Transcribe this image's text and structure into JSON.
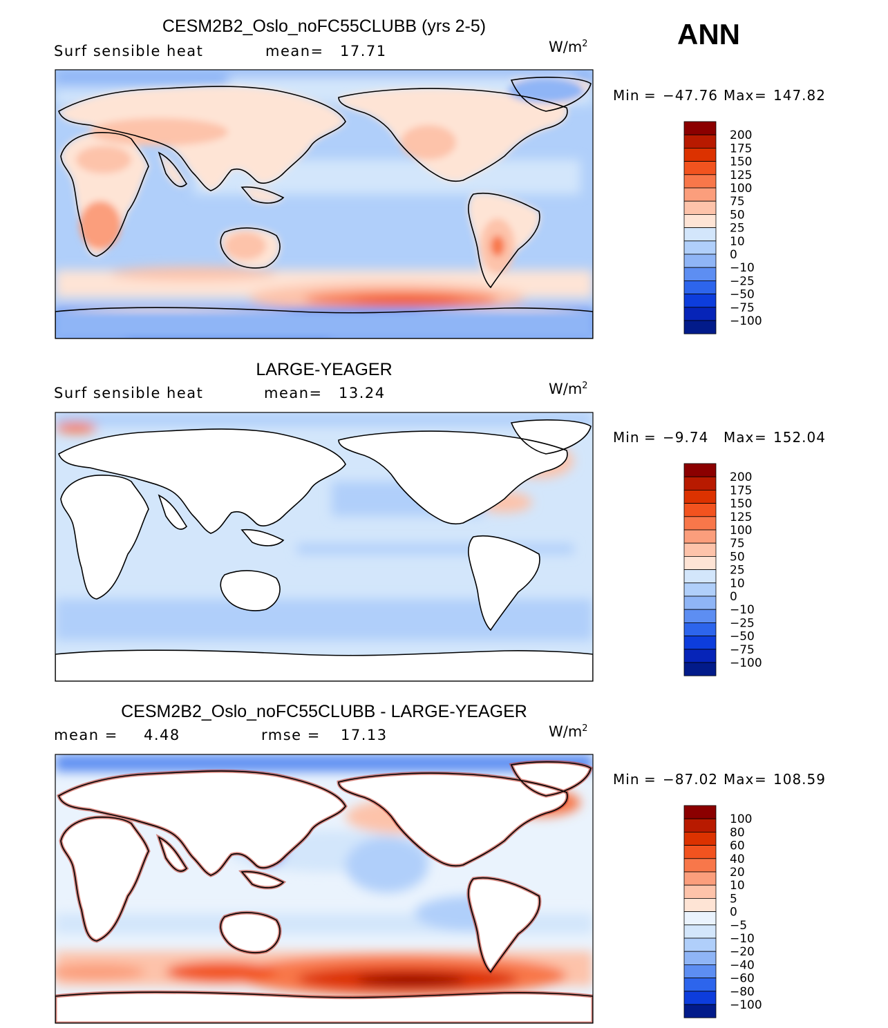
{
  "season": "ANN",
  "units_label": "W/m",
  "units_exp": "2",
  "panels": [
    {
      "title": "CESM2B2_Oslo_noFC55CLUBB (yrs 2-5)",
      "sub_left": "Surf sensible heat",
      "sub_mid_label": "mean=",
      "sub_mid_value": "17.71",
      "sub_right_label": "",
      "sub_right_value": "",
      "min_label": "Min",
      "eq": "=",
      "min_value": "−47.76",
      "max_label": "Max",
      "max_value": "147.82"
    },
    {
      "title": "LARGE-YEAGER",
      "sub_left": "Surf sensible heat",
      "sub_mid_label": "mean=",
      "sub_mid_value": "13.24",
      "sub_right_label": "",
      "sub_right_value": "",
      "min_label": "Min",
      "eq": "=",
      "min_value": "−9.74",
      "max_label": "Max",
      "max_value": "152.04"
    },
    {
      "title": "CESM2B2_Oslo_noFC55CLUBB - LARGE-YEAGER",
      "sub_left": "mean =",
      "sub_mid_label": "4.48",
      "sub_mid_value": "",
      "sub_right_label": "rmse =",
      "sub_right_value": "17.13",
      "min_label": "Min",
      "eq": "=",
      "min_value": "−87.02",
      "max_label": "Max",
      "max_value": "108.59"
    }
  ],
  "chart_data": [
    {
      "type": "heatmap",
      "title": "CESM2B2_Oslo_noFC55CLUBB (yrs 2-5)",
      "variable": "Surf sensible heat",
      "units": "W/m2",
      "mean": 17.71,
      "min": -47.76,
      "max": 147.82,
      "colorbar_levels": [
        "200",
        "175",
        "150",
        "125",
        "100",
        "75",
        "50",
        "25",
        "10",
        "0",
        "−10",
        "−25",
        "−50",
        "−75",
        "−100"
      ],
      "colorbar_colors": [
        "#8b0000",
        "#b81a00",
        "#dc3200",
        "#f2531f",
        "#f8774a",
        "#fb9e7c",
        "#fdc3aa",
        "#fee4d5",
        "#d3e6fb",
        "#b0cffa",
        "#8fb5f6",
        "#5d8ef2",
        "#2d65ec",
        "#0d3ddc",
        "#0624b8",
        "#021b8a"
      ]
    },
    {
      "type": "heatmap",
      "title": "LARGE-YEAGER",
      "variable": "Surf sensible heat",
      "units": "W/m2",
      "mean": 13.24,
      "min": -9.74,
      "max": 152.04,
      "colorbar_levels": [
        "200",
        "175",
        "150",
        "125",
        "100",
        "75",
        "50",
        "25",
        "10",
        "0",
        "−10",
        "−25",
        "−50",
        "−75",
        "−100"
      ],
      "colorbar_colors": [
        "#8b0000",
        "#b81a00",
        "#dc3200",
        "#f2531f",
        "#f8774a",
        "#fb9e7c",
        "#fdc3aa",
        "#fee4d5",
        "#d3e6fb",
        "#b0cffa",
        "#8fb5f6",
        "#5d8ef2",
        "#2d65ec",
        "#0d3ddc",
        "#0624b8",
        "#021b8a"
      ]
    },
    {
      "type": "heatmap",
      "title": "CESM2B2_Oslo_noFC55CLUBB - LARGE-YEAGER",
      "units": "W/m2",
      "mean": 4.48,
      "rmse": 17.13,
      "min": -87.02,
      "max": 108.59,
      "colorbar_levels": [
        "100",
        "80",
        "60",
        "40",
        "20",
        "10",
        "5",
        "0",
        "−5",
        "−10",
        "−20",
        "−40",
        "−60",
        "−80",
        "−100"
      ],
      "colorbar_colors": [
        "#8b0000",
        "#b81a00",
        "#dc3200",
        "#f2531f",
        "#f8774a",
        "#fb9e7c",
        "#fdc3aa",
        "#fee4d5",
        "#eaf3fd",
        "#d3e6fb",
        "#b0cffa",
        "#8fb5f6",
        "#5d8ef2",
        "#2d65ec",
        "#0d3ddc",
        "#021b8a"
      ]
    }
  ]
}
